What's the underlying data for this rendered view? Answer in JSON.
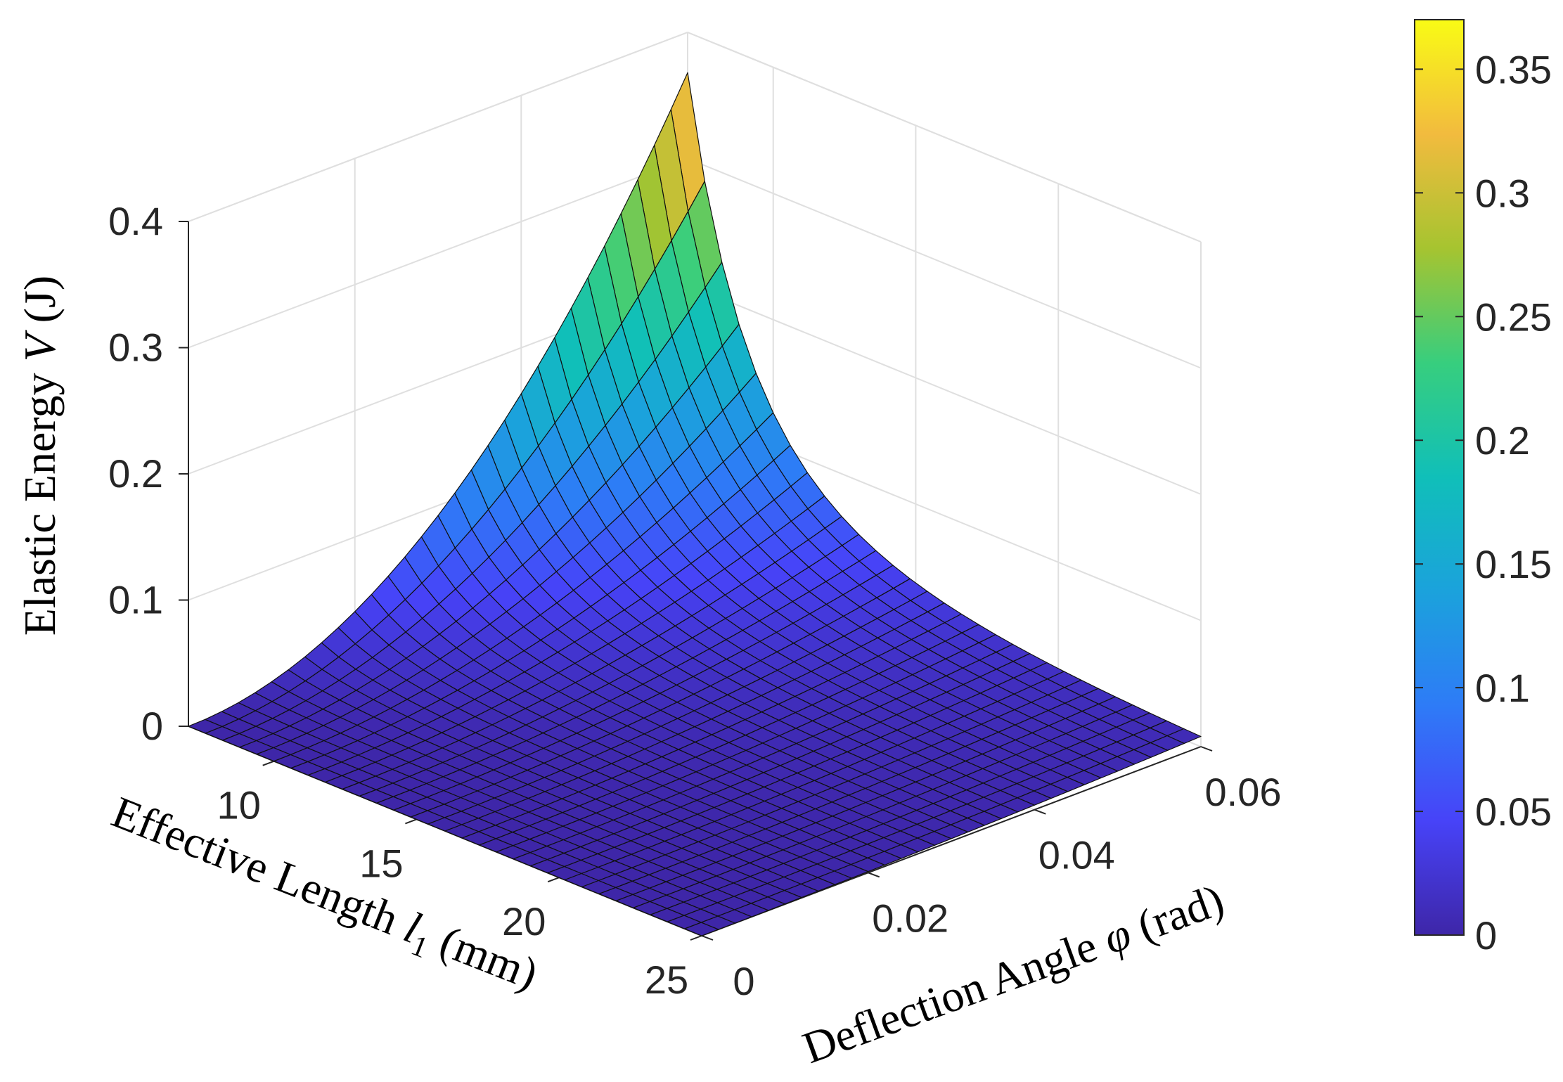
{
  "chart_data": {
    "type": "surface",
    "title": "",
    "function": "V = 0.368 * (phi / 0.06)^2 * (7 / l1)^3",
    "x": {
      "label_prefix": "Effective Length ",
      "label_var": "l",
      "label_sub": "1",
      "label_suffix": " (mm)",
      "range": [
        7,
        25
      ],
      "ticks": [
        10,
        15,
        20,
        25
      ],
      "tick_labels": [
        "10",
        "15",
        "20",
        "25"
      ]
    },
    "y": {
      "label_prefix": "Deflection Angle ",
      "label_var": "φ",
      "label_suffix": " (rad)",
      "range": [
        0,
        0.06
      ],
      "ticks": [
        0,
        0.02,
        0.04,
        0.06
      ],
      "tick_labels": [
        "0",
        "0.02",
        "0.04",
        "0.06"
      ]
    },
    "z": {
      "label_prefix": "Elastic Energy ",
      "label_var": "V",
      "label_suffix": " (J)",
      "range": [
        0,
        0.4
      ],
      "ticks": [
        0,
        0.1,
        0.2,
        0.3,
        0.4
      ],
      "tick_labels": [
        "0",
        "0.1",
        "0.2",
        "0.3",
        "0.4"
      ]
    },
    "colorbar": {
      "range": [
        0,
        0.37
      ],
      "ticks": [
        0,
        0.05,
        0.1,
        0.15,
        0.2,
        0.25,
        0.3,
        0.35
      ],
      "tick_labels": [
        "0",
        "0.05",
        "0.1",
        "0.15",
        "0.2",
        "0.25",
        "0.3",
        "0.35"
      ],
      "colormap": "parula"
    },
    "sample_points": [
      {
        "l1": 7,
        "phi": 0.06,
        "V": 0.368
      },
      {
        "l1": 10,
        "phi": 0.06,
        "V": 0.126
      },
      {
        "l1": 15,
        "phi": 0.06,
        "V": 0.037
      },
      {
        "l1": 20,
        "phi": 0.06,
        "V": 0.016
      },
      {
        "l1": 25,
        "phi": 0.06,
        "V": 0.008
      },
      {
        "l1": 7,
        "phi": 0.03,
        "V": 0.092
      },
      {
        "l1": 7,
        "phi": 0.0,
        "V": 0.0
      }
    ],
    "mesh": {
      "l1_divisions": 30,
      "phi_divisions": 30
    }
  }
}
